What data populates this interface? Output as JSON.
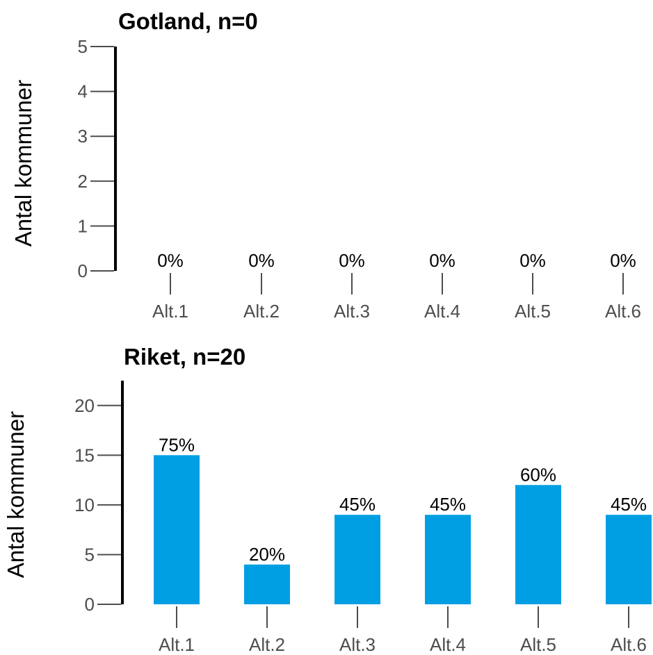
{
  "chart_data": [
    {
      "type": "bar",
      "title": "Gotland, n=0",
      "ylabel": "Antal kommuner",
      "xlabel": "",
      "categories": [
        "Alt.1",
        "Alt.2",
        "Alt.3",
        "Alt.4",
        "Alt.5",
        "Alt.6"
      ],
      "values": [
        0,
        0,
        0,
        0,
        0,
        0
      ],
      "data_labels": [
        "0%",
        "0%",
        "0%",
        "0%",
        "0%",
        "0%"
      ],
      "ylim": [
        0,
        5
      ],
      "yticks": [
        0,
        1,
        2,
        3,
        4,
        5
      ],
      "bar_color": "#009fe3",
      "grid": false,
      "legend": "none"
    },
    {
      "type": "bar",
      "title": "Riket, n=20",
      "ylabel": "Antal kommuner",
      "xlabel": "",
      "categories": [
        "Alt.1",
        "Alt.2",
        "Alt.3",
        "Alt.4",
        "Alt.5",
        "Alt.6"
      ],
      "values": [
        15,
        4,
        9,
        9,
        12,
        9
      ],
      "data_labels": [
        "75%",
        "20%",
        "45%",
        "45%",
        "60%",
        "45%"
      ],
      "ylim": [
        0,
        22.5
      ],
      "yticks": [
        0,
        5,
        10,
        15,
        20
      ],
      "bar_color": "#009fe3",
      "grid": false,
      "legend": "none"
    }
  ]
}
